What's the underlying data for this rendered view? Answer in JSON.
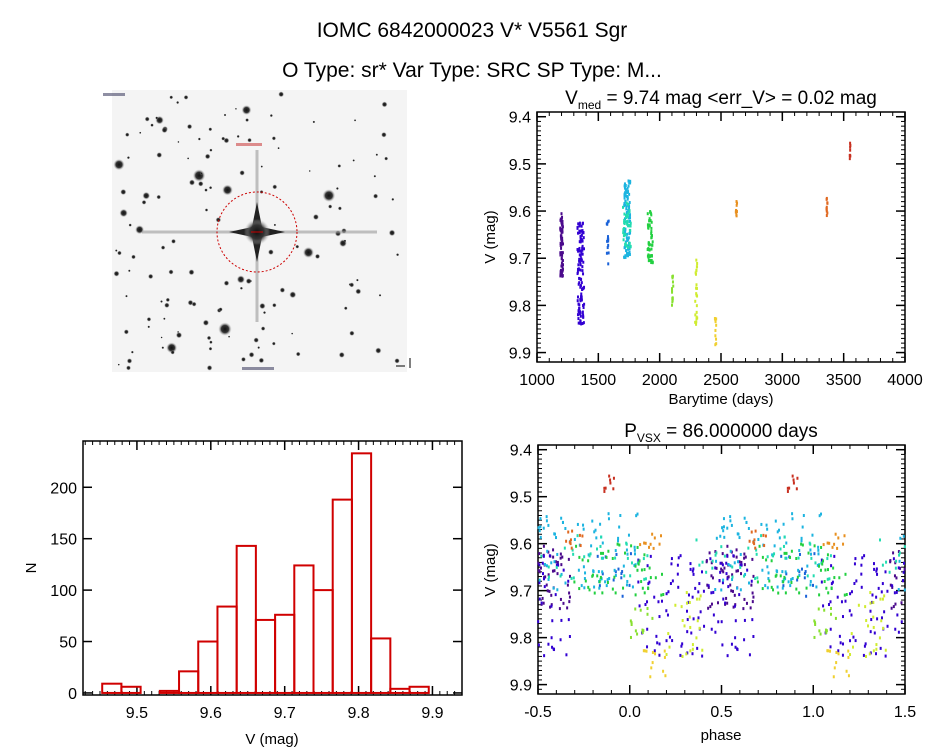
{
  "header": {
    "line1": "IOMC 6842000023   V* V5561 Sgr",
    "line2": "O Type: sr*  Var Type: SRC  SP Type: M..."
  },
  "colors": {
    "hist": "#d00000",
    "axes": "#000000",
    "circle": "#cc0000"
  },
  "chart_data": [
    {
      "id": "finder-image",
      "type": "image",
      "description_labels": [
        "V* V5561 Sgr"
      ]
    },
    {
      "id": "lightcurve",
      "type": "scatter",
      "title_main": "V",
      "title_sub": "med",
      "title_rest": " = 9.74 mag <err_V> = 0.02 mag",
      "xlabel": "Barytime (days)",
      "ylabel": "V (mag)",
      "xlim": [
        1000,
        4000
      ],
      "ylim": [
        9.9,
        9.4
      ],
      "xticks": [
        1000,
        1500,
        2000,
        2500,
        3000,
        3500,
        4000
      ],
      "yticks": [
        9.4,
        9.5,
        9.6,
        9.7,
        9.8,
        9.9
      ],
      "seasons": [
        {
          "t": [
            1190,
            1212
          ],
          "v": [
            9.59,
            9.74
          ],
          "n": 60,
          "color": "#4b0a8c"
        },
        {
          "t": [
            1330,
            1385
          ],
          "v": [
            9.625,
            9.84
          ],
          "n": 110,
          "color": "#3200d2"
        },
        {
          "t": [
            1568,
            1585
          ],
          "v": [
            9.61,
            9.715
          ],
          "n": 14,
          "color": "#1a62d8"
        },
        {
          "t": [
            1710,
            1760
          ],
          "v": [
            9.535,
            9.7
          ],
          "n": 90,
          "color": "#1cb4e0"
        },
        {
          "t": [
            1700,
            1765
          ],
          "v": [
            9.58,
            9.68
          ],
          "n": 40,
          "color": "#22dcb0"
        },
        {
          "t": [
            1900,
            1945
          ],
          "v": [
            9.6,
            9.71
          ],
          "n": 50,
          "color": "#22d040"
        },
        {
          "t": [
            2100,
            2112
          ],
          "v": [
            9.72,
            9.81
          ],
          "n": 14,
          "color": "#88e030"
        },
        {
          "t": [
            2288,
            2306
          ],
          "v": [
            9.7,
            9.845
          ],
          "n": 24,
          "color": "#d0ec30"
        },
        {
          "t": [
            2450,
            2462
          ],
          "v": [
            9.825,
            9.885
          ],
          "n": 12,
          "color": "#f0d030"
        },
        {
          "t": [
            2620,
            2632
          ],
          "v": [
            9.578,
            9.612
          ],
          "n": 10,
          "color": "#e89020"
        },
        {
          "t": [
            3360,
            3370
          ],
          "v": [
            9.567,
            9.618
          ],
          "n": 10,
          "color": "#e06820"
        },
        {
          "t": [
            3548,
            3556
          ],
          "v": [
            9.455,
            9.492
          ],
          "n": 8,
          "color": "#c83020"
        }
      ]
    },
    {
      "id": "histogram",
      "type": "bar",
      "xlabel": "V (mag)",
      "ylabel": "N",
      "xlim": [
        9.427,
        9.94
      ],
      "ylim": [
        -2,
        245
      ],
      "xticks": [
        9.5,
        9.6,
        9.7,
        9.8,
        9.9
      ],
      "yticks": [
        0,
        50,
        100,
        150,
        200
      ],
      "bin_start": 9.453,
      "bin_width": 0.026,
      "counts": [
        9,
        6,
        0,
        2,
        21,
        50,
        84,
        143,
        71,
        76,
        124,
        100,
        188,
        233,
        53,
        4,
        6
      ]
    },
    {
      "id": "phased",
      "type": "scatter",
      "title_main": "P",
      "title_sub": "VSX",
      "title_rest": " = 86.000000 days",
      "period": 86.0,
      "epoch": 1240,
      "xlabel": "phase",
      "ylabel": "V (mag)",
      "xlim": [
        -0.5,
        1.5
      ],
      "ylim": [
        9.9,
        9.4
      ],
      "xticks": [
        -0.5,
        0.0,
        0.5,
        1.0,
        1.5
      ],
      "xtick_labels": [
        "-0.5",
        "0.0",
        "0.5",
        "1.0",
        "1.5"
      ],
      "yticks": [
        9.4,
        9.5,
        9.6,
        9.7,
        9.8,
        9.9
      ]
    }
  ]
}
